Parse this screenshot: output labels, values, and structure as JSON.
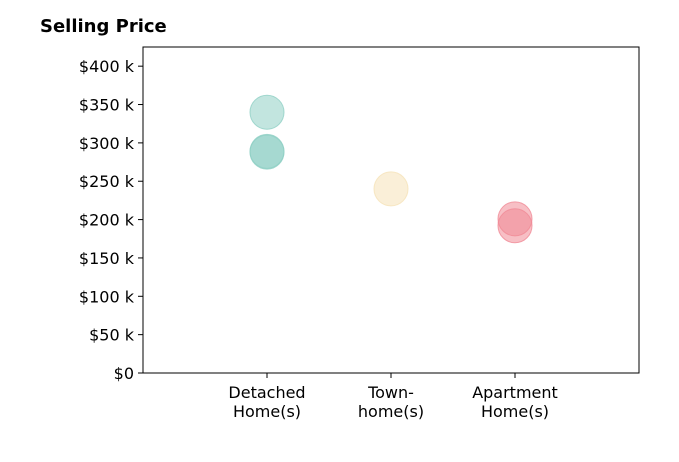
{
  "chart_data": {
    "type": "scatter",
    "title": "Selling Price",
    "xlabel": "",
    "ylabel": "",
    "categories": [
      [
        "Detached",
        "Home(s)"
      ],
      [
        "Town-",
        "home(s)"
      ],
      [
        "Apartment",
        "Home(s)"
      ]
    ],
    "yticks": [
      0,
      50,
      100,
      150,
      200,
      250,
      300,
      350,
      400
    ],
    "ytick_labels": [
      "$0",
      "$50 k",
      "$100 k",
      "$150 k",
      "$200 k",
      "$250 k",
      "$300 k",
      "$350 k",
      "$400 k"
    ],
    "ylim": [
      0,
      425
    ],
    "grid": false,
    "points": [
      {
        "category": 0,
        "y": 340,
        "color": "#8fcfc4"
      },
      {
        "category": 0,
        "y": 289,
        "color": "#8fcfc4"
      },
      {
        "category": 0,
        "y": 288,
        "color": "#8fcfc4"
      },
      {
        "category": 1,
        "y": 240,
        "color": "#f5e2b8"
      },
      {
        "category": 2,
        "y": 201,
        "color": "#f08a96"
      },
      {
        "category": 2,
        "y": 192,
        "color": "#f08a96"
      }
    ]
  }
}
